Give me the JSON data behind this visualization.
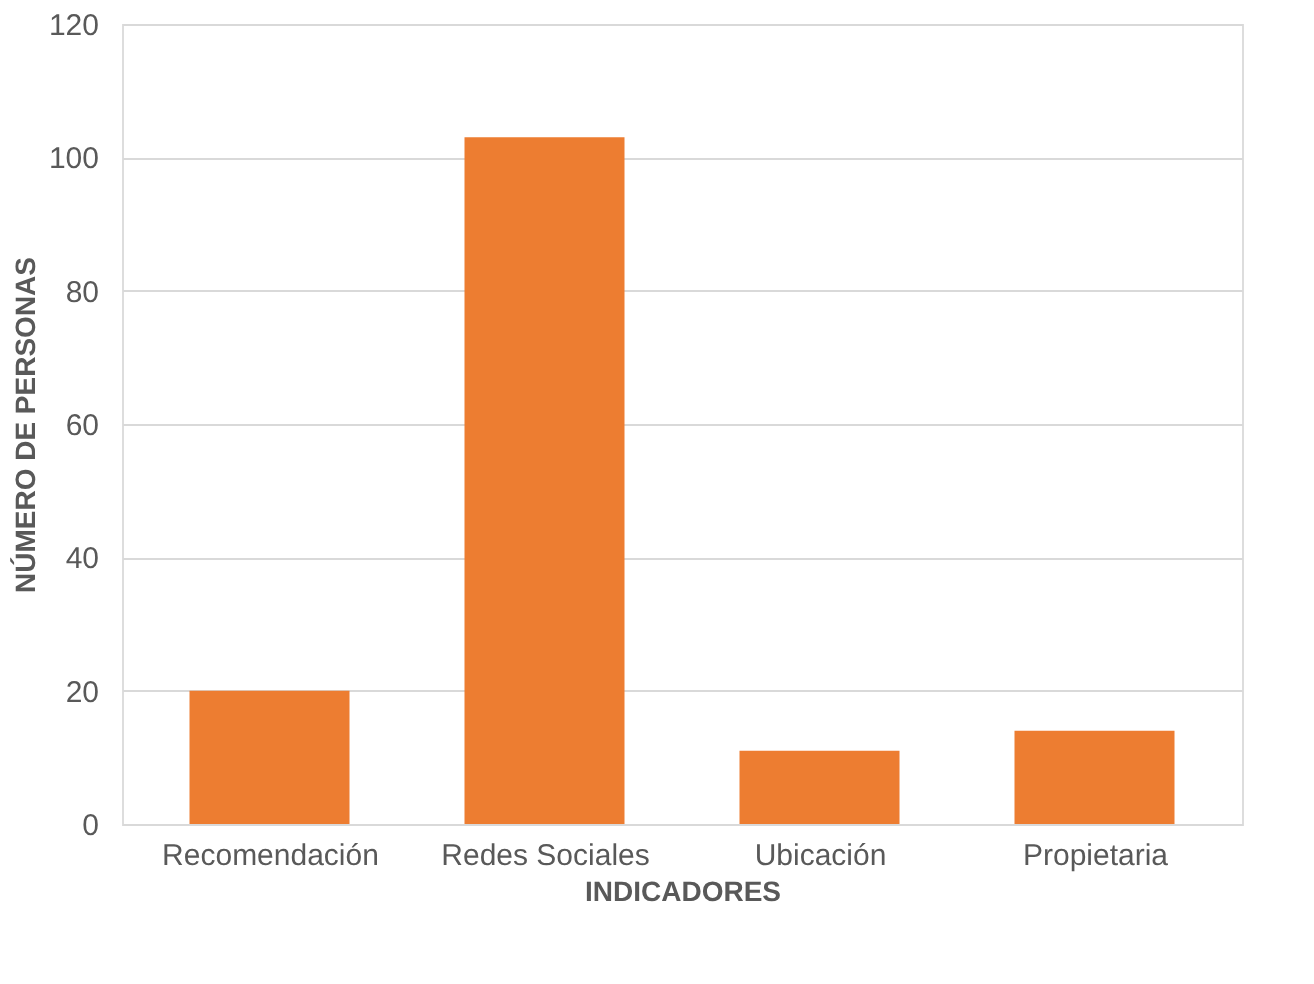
{
  "chart_data": {
    "type": "bar",
    "xlabel": "INDICADORES",
    "ylabel": "NÚMERO DE PERSONAS",
    "categories": [
      "Recomendación",
      "Redes Sociales",
      "Ubicación",
      "Propietaria"
    ],
    "values": [
      20,
      103,
      11,
      14
    ],
    "color": "#ed7d31",
    "ylim": [
      0,
      120
    ],
    "yticks": [
      0,
      20,
      40,
      60,
      80,
      100,
      120
    ],
    "grid": "y"
  }
}
